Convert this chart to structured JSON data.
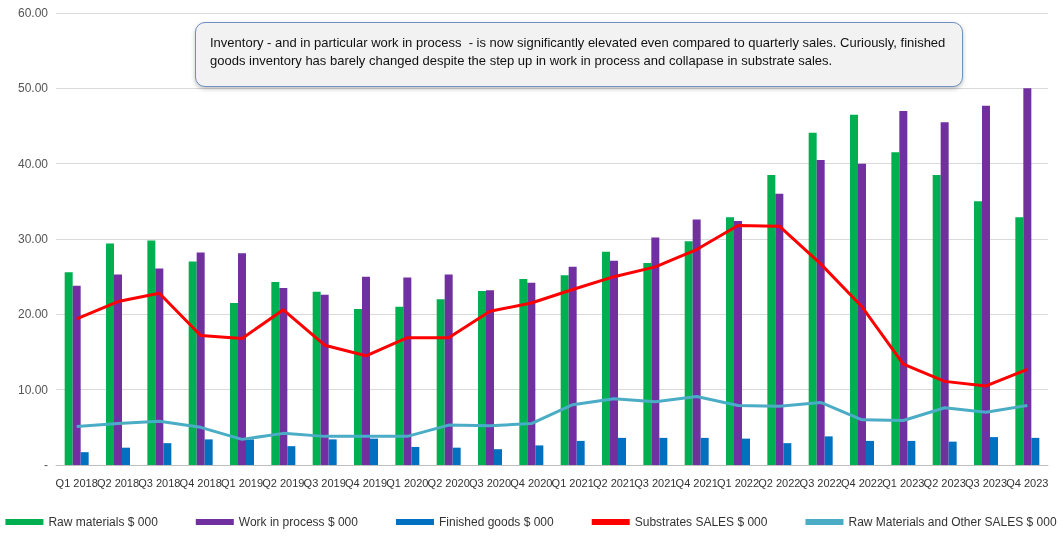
{
  "chart_data": {
    "type": "bar",
    "categories": [
      "Q1 2018",
      "Q2 2018",
      "Q3 2018",
      "Q4 2018",
      "Q1 2019",
      "Q2 2019",
      "Q3 2019",
      "Q4 2019",
      "Q1 2020",
      "Q2 2020",
      "Q3 2020",
      "Q4 2020",
      "Q1 2021",
      "Q2 2021",
      "Q3 2021",
      "Q4 2021",
      "Q1 2022",
      "Q2 2022",
      "Q3 2022",
      "Q4 2022",
      "Q1 2023",
      "Q2 2023",
      "Q3 2023",
      "Q4 2023"
    ],
    "series": [
      {
        "name": "Raw materials $ 000",
        "color": "#00b050",
        "values": [
          25.6,
          29.4,
          29.8,
          27.0,
          21.5,
          24.3,
          23.0,
          20.7,
          21.0,
          22.0,
          23.1,
          24.7,
          25.2,
          28.3,
          26.8,
          29.7,
          32.9,
          38.5,
          44.1,
          46.5,
          41.5,
          38.5,
          35.0,
          32.9
        ]
      },
      {
        "name": "Work in process $ 000",
        "color": "#7030a0",
        "values": [
          23.8,
          25.3,
          26.1,
          28.2,
          28.1,
          23.5,
          22.6,
          25.0,
          24.9,
          25.3,
          23.2,
          24.2,
          26.3,
          27.1,
          30.2,
          32.6,
          32.4,
          36.0,
          40.5,
          40.0,
          47.0,
          45.5,
          47.7,
          50.0
        ]
      },
      {
        "name": "Finished goods $ 000",
        "color": "#0070c0",
        "values": [
          1.7,
          2.3,
          2.9,
          3.4,
          3.4,
          2.5,
          3.4,
          3.5,
          2.4,
          2.3,
          2.1,
          2.6,
          3.2,
          3.6,
          3.6,
          3.6,
          3.5,
          2.9,
          3.8,
          3.2,
          3.2,
          3.1,
          3.7,
          3.6
        ]
      },
      {
        "name": "Substrates SALES $ 000",
        "type": "line",
        "color": "#ff0000",
        "values": [
          19.4,
          21.7,
          22.8,
          17.2,
          16.8,
          20.6,
          15.9,
          14.5,
          16.9,
          16.9,
          20.4,
          21.5,
          23.3,
          25.0,
          26.3,
          28.6,
          31.8,
          31.7,
          26.7,
          21.0,
          13.4,
          11.1,
          10.5,
          12.7
        ]
      },
      {
        "name": "Raw Materials and Other SALES $ 000",
        "type": "line",
        "color": "#4bacc6",
        "values": [
          5.1,
          5.5,
          5.8,
          5.0,
          3.4,
          4.2,
          3.8,
          3.8,
          3.8,
          5.3,
          5.2,
          5.5,
          8.0,
          8.8,
          8.4,
          9.1,
          7.9,
          7.8,
          8.3,
          6.0,
          5.9,
          7.6,
          7.0,
          7.9
        ]
      }
    ],
    "ylim": [
      0,
      60
    ],
    "yticks": [
      {
        "value": 0,
        "label": "-"
      },
      {
        "value": 10,
        "label": "10.00"
      },
      {
        "value": 20,
        "label": "20.00"
      },
      {
        "value": 30,
        "label": "30.00"
      },
      {
        "value": 40,
        "label": "40.00"
      },
      {
        "value": 50,
        "label": "50.00"
      },
      {
        "value": 60,
        "label": "60.00"
      }
    ],
    "annotations": [
      "Inventory - and in particular work in process  - is now significantly elevated even compared to quarterly sales. Curiously, finished goods inventory has barely changed despite the step up in work in process and collapase in substrate sales."
    ],
    "grid": "y",
    "legend": "bottom",
    "marker": "none"
  }
}
